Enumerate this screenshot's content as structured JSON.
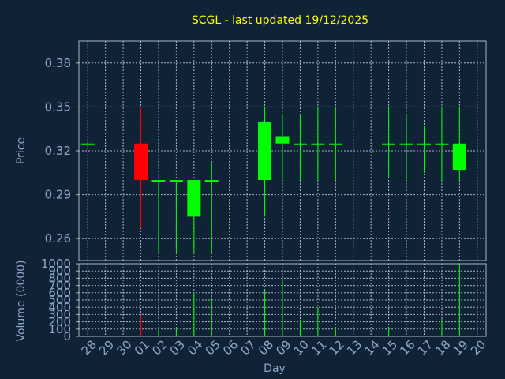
{
  "chart_data": [
    {
      "type": "candlestick",
      "title": "SCGL - last updated 19/12/2025",
      "xlabel": "",
      "ylabel": "Price",
      "ylim": [
        0.245,
        0.395
      ],
      "yticks": [
        0.26,
        0.29,
        0.32,
        0.35,
        0.38
      ],
      "grid": true,
      "categories": [
        "28",
        "29",
        "30",
        "01",
        "02",
        "03",
        "04",
        "05",
        "06",
        "07",
        "08",
        "09",
        "10",
        "11",
        "12",
        "13",
        "14",
        "15",
        "16",
        "17",
        "18",
        "19",
        "20"
      ],
      "candles": [
        {
          "x": "28",
          "open": 0.325,
          "high": 0.325,
          "low": 0.325,
          "close": 0.325
        },
        {
          "x": "01",
          "open": 0.325,
          "high": 0.35,
          "low": 0.267,
          "close": 0.3
        },
        {
          "x": "02",
          "open": 0.3,
          "high": 0.3,
          "low": 0.25,
          "close": 0.3
        },
        {
          "x": "03",
          "open": 0.3,
          "high": 0.3,
          "low": 0.25,
          "close": 0.3
        },
        {
          "x": "04",
          "open": 0.275,
          "high": 0.3,
          "low": 0.25,
          "close": 0.3
        },
        {
          "x": "05",
          "open": 0.3,
          "high": 0.312,
          "low": 0.25,
          "close": 0.3
        },
        {
          "x": "08",
          "open": 0.3,
          "high": 0.35,
          "low": 0.275,
          "close": 0.34
        },
        {
          "x": "09",
          "open": 0.325,
          "high": 0.345,
          "low": 0.3,
          "close": 0.33
        },
        {
          "x": "10",
          "open": 0.325,
          "high": 0.345,
          "low": 0.3,
          "close": 0.325
        },
        {
          "x": "11",
          "open": 0.325,
          "high": 0.35,
          "low": 0.3,
          "close": 0.325
        },
        {
          "x": "12",
          "open": 0.325,
          "high": 0.35,
          "low": 0.3,
          "close": 0.325
        },
        {
          "x": "15",
          "open": 0.325,
          "high": 0.35,
          "low": 0.302,
          "close": 0.325
        },
        {
          "x": "16",
          "open": 0.325,
          "high": 0.345,
          "low": 0.3,
          "close": 0.325
        },
        {
          "x": "17",
          "open": 0.325,
          "high": 0.337,
          "low": 0.305,
          "close": 0.325
        },
        {
          "x": "18",
          "open": 0.325,
          "high": 0.35,
          "low": 0.3,
          "close": 0.325
        },
        {
          "x": "19",
          "open": 0.307,
          "high": 0.35,
          "low": 0.3,
          "close": 0.325
        }
      ],
      "colors": {
        "up": "#00ff00",
        "down": "#ff0000"
      }
    },
    {
      "type": "bar",
      "title": "",
      "xlabel": "Day",
      "ylabel": "Volume (0000)",
      "ylim": [
        0,
        1000
      ],
      "yticks": [
        0,
        100,
        200,
        300,
        400,
        500,
        600,
        700,
        800,
        900,
        1000
      ],
      "grid": true,
      "categories": [
        "28",
        "29",
        "30",
        "01",
        "02",
        "03",
        "04",
        "05",
        "06",
        "07",
        "08",
        "09",
        "10",
        "11",
        "12",
        "13",
        "14",
        "15",
        "16",
        "17",
        "18",
        "19",
        "20"
      ],
      "values": [
        0,
        0,
        0,
        290,
        90,
        120,
        600,
        530,
        0,
        0,
        630,
        800,
        230,
        400,
        100,
        0,
        0,
        100,
        0,
        0,
        240,
        1000,
        0
      ],
      "bar_colors": [
        "#00ff00",
        "#00ff00",
        "#00ff00",
        "#ff0000",
        "#00ff00",
        "#00ff00",
        "#00ff00",
        "#00ff00",
        "#00ff00",
        "#00ff00",
        "#00ff00",
        "#00ff00",
        "#00ff00",
        "#00ff00",
        "#00ff00",
        "#00ff00",
        "#00ff00",
        "#00ff00",
        "#00ff00",
        "#00ff00",
        "#00ff00",
        "#00ff00",
        "#00ff00"
      ]
    }
  ],
  "theme": {
    "background": "#0f2236",
    "plot_border": "#aab7c4",
    "grid": "#aab7c4",
    "title": "#ffff00",
    "label": "#8fa7c9"
  }
}
